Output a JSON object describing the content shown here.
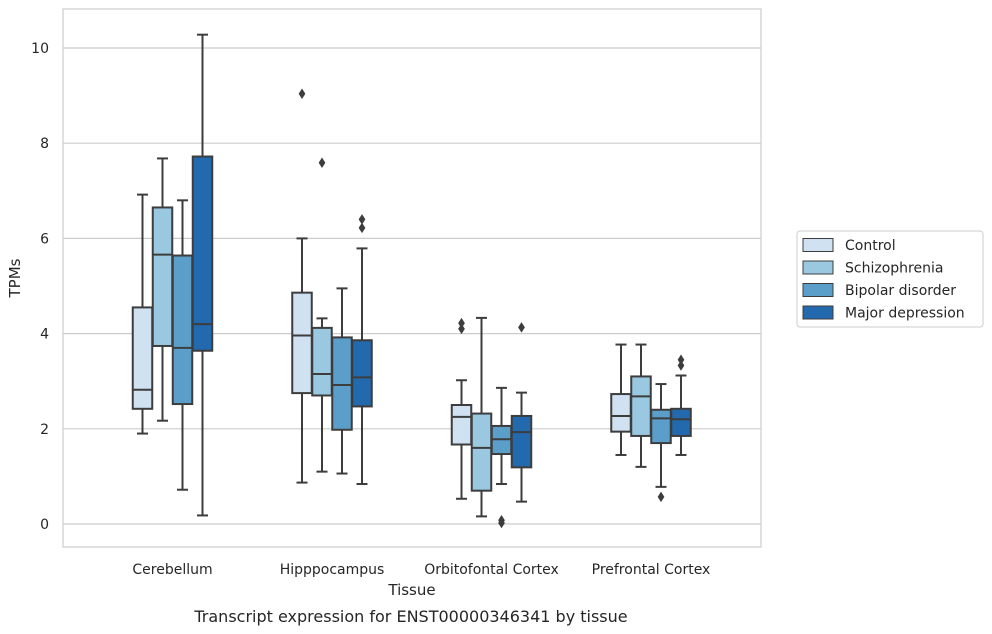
{
  "caption": "Transcript expression for ENST00000346341 by tissue",
  "chart_data": {
    "type": "boxplot",
    "xlabel": "Tissue",
    "ylabel": "TPMs",
    "ylim": [
      -0.5,
      10.8
    ],
    "yticks": [
      0,
      2,
      4,
      6,
      8,
      10
    ],
    "grid": "horizontal",
    "legend_position": "right",
    "categories": [
      "Cerebellum",
      "Hipppocampus",
      "Orbitofontal Cortex",
      "Prefrontal Cortex"
    ],
    "series": [
      {
        "name": "Control",
        "color": "#d0e1f2",
        "boxes": [
          {
            "whisker_low": 1.9,
            "q1": 2.42,
            "median": 2.82,
            "q3": 4.55,
            "whisker_high": 6.92,
            "outliers": []
          },
          {
            "whisker_low": 0.87,
            "q1": 2.75,
            "median": 3.96,
            "q3": 4.86,
            "whisker_high": 6.0,
            "outliers": [
              9.04
            ]
          },
          {
            "whisker_low": 0.53,
            "q1": 1.67,
            "median": 2.25,
            "q3": 2.5,
            "whisker_high": 3.02,
            "outliers": [
              4.1,
              4.22
            ]
          },
          {
            "whisker_low": 1.45,
            "q1": 1.94,
            "median": 2.27,
            "q3": 2.73,
            "whisker_high": 3.77,
            "outliers": []
          }
        ]
      },
      {
        "name": "Schizophrenia",
        "color": "#9ac8e0",
        "boxes": [
          {
            "whisker_low": 2.17,
            "q1": 3.74,
            "median": 5.66,
            "q3": 6.65,
            "whisker_high": 7.68,
            "outliers": []
          },
          {
            "whisker_low": 1.1,
            "q1": 2.7,
            "median": 3.15,
            "q3": 4.12,
            "whisker_high": 4.32,
            "outliers": [
              7.59
            ]
          },
          {
            "whisker_low": 0.16,
            "q1": 0.7,
            "median": 1.6,
            "q3": 2.32,
            "whisker_high": 4.33,
            "outliers": []
          },
          {
            "whisker_low": 1.2,
            "q1": 1.85,
            "median": 2.68,
            "q3": 3.1,
            "whisker_high": 3.77,
            "outliers": []
          }
        ]
      },
      {
        "name": "Bipolar disorder",
        "color": "#5b9ec9",
        "boxes": [
          {
            "whisker_low": 0.72,
            "q1": 2.52,
            "median": 3.7,
            "q3": 5.64,
            "whisker_high": 6.8,
            "outliers": []
          },
          {
            "whisker_low": 1.06,
            "q1": 1.98,
            "median": 2.92,
            "q3": 3.92,
            "whisker_high": 4.95,
            "outliers": []
          },
          {
            "whisker_low": 0.84,
            "q1": 1.47,
            "median": 1.78,
            "q3": 2.06,
            "whisker_high": 2.86,
            "outliers": [
              0.02,
              0.08
            ]
          },
          {
            "whisker_low": 0.78,
            "q1": 1.7,
            "median": 2.22,
            "q3": 2.4,
            "whisker_high": 2.94,
            "outliers": [
              0.57
            ]
          }
        ]
      },
      {
        "name": "Major depression",
        "color": "#2369ad",
        "boxes": [
          {
            "whisker_low": 0.18,
            "q1": 3.64,
            "median": 4.2,
            "q3": 7.72,
            "whisker_high": 10.28,
            "outliers": []
          },
          {
            "whisker_low": 0.84,
            "q1": 2.47,
            "median": 3.08,
            "q3": 3.86,
            "whisker_high": 5.79,
            "outliers": [
              6.22,
              6.4
            ]
          },
          {
            "whisker_low": 0.47,
            "q1": 1.19,
            "median": 1.93,
            "q3": 2.27,
            "whisker_high": 2.76,
            "outliers": [
              4.13
            ]
          },
          {
            "whisker_low": 1.45,
            "q1": 1.85,
            "median": 2.2,
            "q3": 2.42,
            "whisker_high": 3.12,
            "outliers": [
              3.33,
              3.45
            ]
          }
        ]
      }
    ]
  }
}
